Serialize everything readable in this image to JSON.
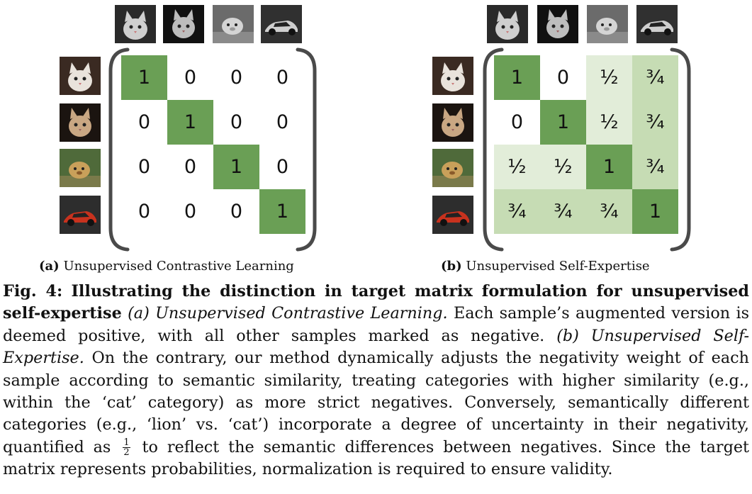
{
  "panel_a": {
    "caption_tag": "(a)",
    "caption_text": "Unsupervised Contrastive Learning",
    "matrix": [
      [
        "1",
        "0",
        "0",
        "0"
      ],
      [
        "0",
        "1",
        "0",
        "0"
      ],
      [
        "0",
        "0",
        "1",
        "0"
      ],
      [
        "0",
        "0",
        "0",
        "1"
      ]
    ],
    "shade": [
      [
        2,
        0,
        0,
        0
      ],
      [
        0,
        2,
        0,
        0
      ],
      [
        0,
        0,
        2,
        0
      ],
      [
        0,
        0,
        0,
        2
      ]
    ]
  },
  "panel_b": {
    "caption_tag": "(b)",
    "caption_text": "Unsupervised Self-Expertise",
    "matrix": [
      [
        "1",
        "0",
        "½",
        "¾"
      ],
      [
        "0",
        "1",
        "½",
        "¾"
      ],
      [
        "½",
        "½",
        "1",
        "¾"
      ],
      [
        "¾",
        "¾",
        "¾",
        "1"
      ]
    ],
    "shade": [
      [
        2,
        0,
        1,
        3
      ],
      [
        0,
        2,
        1,
        3
      ],
      [
        1,
        1,
        2,
        3
      ],
      [
        3,
        3,
        3,
        2
      ]
    ]
  },
  "colors": {
    "diagonal": "#6a9f55",
    "half": "#e2edd9",
    "three_quarter": "#c6dcb4",
    "zero": "#ffffff",
    "bracket": "#4a4a4a"
  },
  "column_images": [
    "cat-grayscale-1",
    "cat-grayscale-2",
    "lion-grayscale",
    "car-grayscale"
  ],
  "row_images": [
    "white-kitten",
    "tabby-cat",
    "lion-cub",
    "red-sports-car"
  ],
  "caption": {
    "fig_label": "Fig. 4:",
    "title": "Illustrating the distinction in target matrix formulation for unsupervised self-expertise",
    "part_a_label": "(a) Unsupervised Contrastive Learning.",
    "part_a_text": "Each sample’s augmented version is deemed positive, with all other samples marked as negative.",
    "part_b_label": "(b) Unsupervised Self-Expertise.",
    "part_b_text_1": "On the contrary, our method dynamically adjusts the negativity weight of each sample according to semantic similarity, treating categories with higher similarity (e.g., within the ‘cat’ category) as more strict negatives. Conversely, semantically different categories (e.g., ‘lion’ vs. ‘cat’) incorporate a degree of uncertainty in their negativity, quantified as",
    "frac_num": "1",
    "frac_den": "2",
    "part_b_text_2": "to reflect the semantic differences between negatives. Since the target matrix represents probabilities, normalization is required to ensure validity."
  }
}
